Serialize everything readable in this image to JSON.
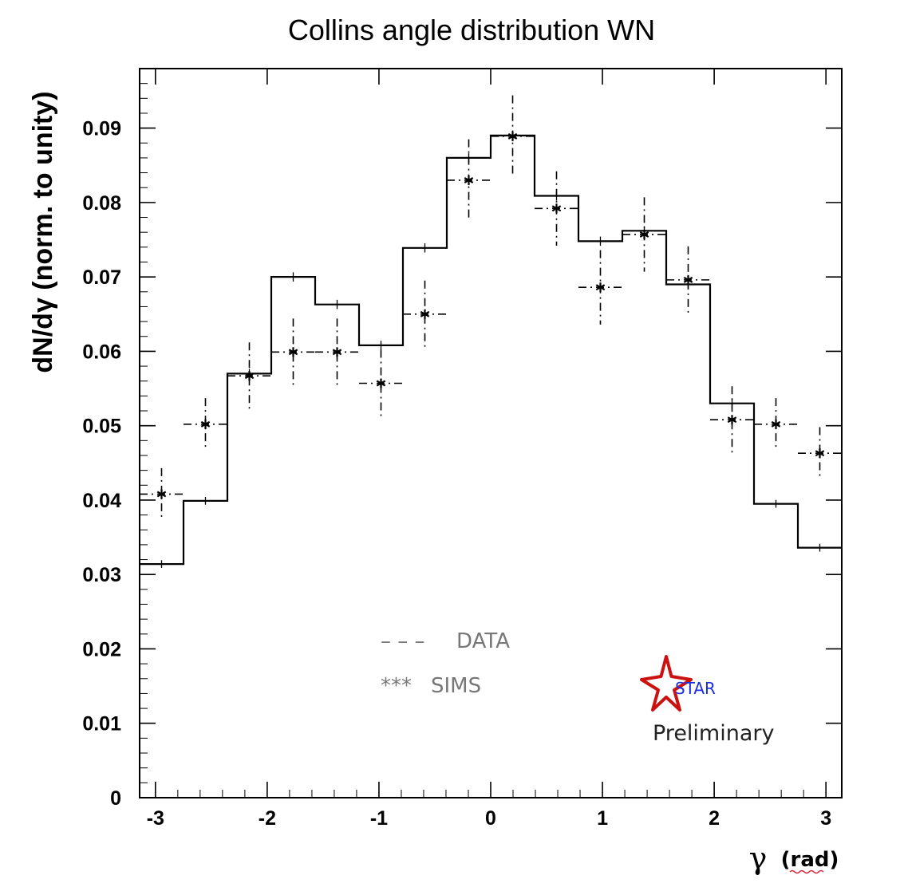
{
  "chart_data": {
    "type": "histogram",
    "title": "Collins angle distribution WN",
    "xlabel_symbol": "γ",
    "xlabel_unit": "(rad)",
    "ylabel": "dN/dγ (norm. to unity)",
    "xlim": [
      -3.1416,
      3.1416
    ],
    "ylim": [
      0,
      0.098
    ],
    "xticks": [
      -3,
      -2,
      -1,
      0,
      1,
      2,
      3
    ],
    "xtick_labels": [
      "-3",
      "-2",
      "-1",
      "0",
      "1",
      "2",
      "3"
    ],
    "yticks": [
      0,
      0.01,
      0.02,
      0.03,
      0.04,
      0.05,
      0.06,
      0.07,
      0.08,
      0.09
    ],
    "ytick_labels": [
      "0",
      "0.01",
      "0.02",
      "0.03",
      "0.04",
      "0.05",
      "0.06",
      "0.07",
      "0.08",
      "0.09"
    ],
    "bin_edges": [
      -3.1416,
      -2.7489,
      -2.3562,
      -1.9635,
      -1.5708,
      -1.1781,
      -0.7854,
      -0.3927,
      0.0,
      0.3927,
      0.7854,
      1.1781,
      1.5708,
      1.9635,
      2.3562,
      2.7489,
      3.1416
    ],
    "series": [
      {
        "name": "DATA",
        "style": "step",
        "values": [
          0.0314,
          0.0399,
          0.057,
          0.07,
          0.0663,
          0.0608,
          0.0739,
          0.086,
          0.089,
          0.0809,
          0.0748,
          0.0762,
          0.069,
          0.053,
          0.0395,
          0.0336
        ],
        "errors": [
          0.0002,
          0.0002,
          0.0003,
          0.0003,
          0.0003,
          0.0003,
          0.0003,
          0.0003,
          0.0003,
          0.0003,
          0.0003,
          0.0003,
          0.0003,
          0.0003,
          0.0002,
          0.0002
        ]
      },
      {
        "name": "SIMS",
        "style": "points",
        "values": [
          0.0408,
          0.0502,
          0.0567,
          0.0599,
          0.0599,
          0.0557,
          0.065,
          0.083,
          0.0889,
          0.0792,
          0.0686,
          0.0757,
          0.0696,
          0.0508,
          0.0502,
          0.0463
        ],
        "errors": [
          0.0035,
          0.0035,
          0.0045,
          0.0045,
          0.0045,
          0.0045,
          0.0045,
          0.0055,
          0.0055,
          0.005,
          0.005,
          0.005,
          0.0045,
          0.0045,
          0.0035,
          0.0035
        ]
      }
    ],
    "legend": {
      "data_marker": "– – –",
      "data_label": "DATA",
      "sims_marker": "***",
      "sims_label": "SIMS"
    },
    "logo": {
      "text": "STAR",
      "caption": "Preliminary",
      "star_color": "#cc1111",
      "text_color": "#1a2ee6"
    }
  }
}
